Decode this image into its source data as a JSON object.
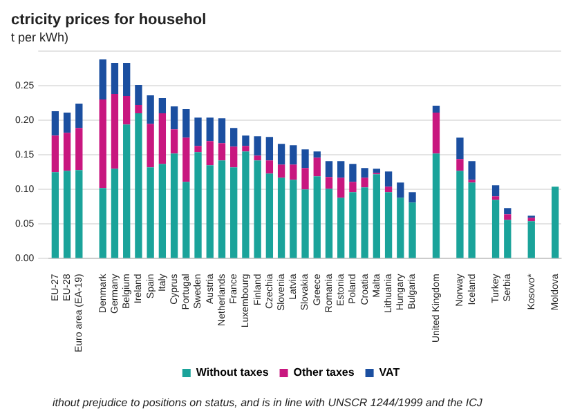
{
  "chart_data": {
    "type": "bar",
    "title": "ctricity prices for househol",
    "subtitle": "t per kWh)",
    "categories": [
      "EU-27",
      "EU-28",
      "Euro area (EA-19)",
      null,
      "Denmark",
      "Germany",
      "Belgium",
      "Ireland",
      "Spain",
      "Italy",
      "Cyprus",
      "Portugal",
      "Sweden",
      "Austria",
      "Netherlands",
      "France",
      "Luxembourg",
      "Finland",
      "Czechia",
      "Slovenia",
      "Latvia",
      "Slovakia",
      "Greece",
      "Romania",
      "Estonia",
      "Poland",
      "Croatia",
      "Malta",
      "Lithuania",
      "Hungary",
      "Bulgaria",
      null,
      "United Kingdom",
      null,
      "Norway",
      "Iceland",
      null,
      "Turkey",
      "Serbia",
      null,
      "Kosovo*",
      null,
      "Moldova"
    ],
    "stacked": true,
    "series": [
      {
        "name": "Without taxes",
        "color": "#1aa39a",
        "values": [
          0.125,
          0.127,
          0.128,
          null,
          0.102,
          0.13,
          0.194,
          0.21,
          0.132,
          0.137,
          0.152,
          0.111,
          0.154,
          0.135,
          0.142,
          0.132,
          0.155,
          0.142,
          0.123,
          0.117,
          0.114,
          0.1,
          0.119,
          0.101,
          0.088,
          0.096,
          0.103,
          0.122,
          0.096,
          0.088,
          0.081,
          null,
          0.152,
          null,
          0.127,
          0.11,
          null,
          0.085,
          0.056,
          null,
          0.054,
          null,
          0.104
        ]
      },
      {
        "name": "Other taxes",
        "color": "#c8177f",
        "values": [
          0.053,
          0.055,
          0.061,
          null,
          0.128,
          0.108,
          0.041,
          0.012,
          0.063,
          0.073,
          0.035,
          0.064,
          0.009,
          0.035,
          0.025,
          0.03,
          0.008,
          0.007,
          0.019,
          0.019,
          0.022,
          0.031,
          0.027,
          0.017,
          0.029,
          0.015,
          0.014,
          0.002,
          0.008,
          0,
          0,
          null,
          0.059,
          null,
          0.017,
          0.004,
          null,
          0.005,
          0.008,
          null,
          0.005,
          null,
          0
        ]
      },
      {
        "name": "VAT",
        "color": "#1b4fa0",
        "values": [
          0.035,
          0.029,
          0.035,
          null,
          0.058,
          0.045,
          0.048,
          0.029,
          0.041,
          0.022,
          0.033,
          0.041,
          0.041,
          0.034,
          0.036,
          0.027,
          0.015,
          0.028,
          0.034,
          0.03,
          0.028,
          0.027,
          0.009,
          0.023,
          0.024,
          0.026,
          0.014,
          0.006,
          0.022,
          0.022,
          0.015,
          null,
          0.01,
          null,
          0.031,
          0.027,
          null,
          0.016,
          0.009,
          null,
          0.003,
          null,
          0
        ]
      }
    ],
    "ylim": [
      0,
      0.3
    ],
    "yticks": [
      {
        "value": 0,
        "label": "0.00"
      },
      {
        "value": 0.05,
        "label": "0.05"
      },
      {
        "value": 0.1,
        "label": "0.10"
      },
      {
        "value": 0.15,
        "label": "0.15"
      },
      {
        "value": 0.2,
        "label": "0.20"
      },
      {
        "value": 0.25,
        "label": "0.25"
      },
      {
        "value": 0.3,
        "label": null
      }
    ],
    "grid": "y",
    "legend": "bottom",
    "annotations": [
      "ithout prejudice to positions on status, and is in line with UNSCR 1244/1999 and the ICJ"
    ]
  }
}
